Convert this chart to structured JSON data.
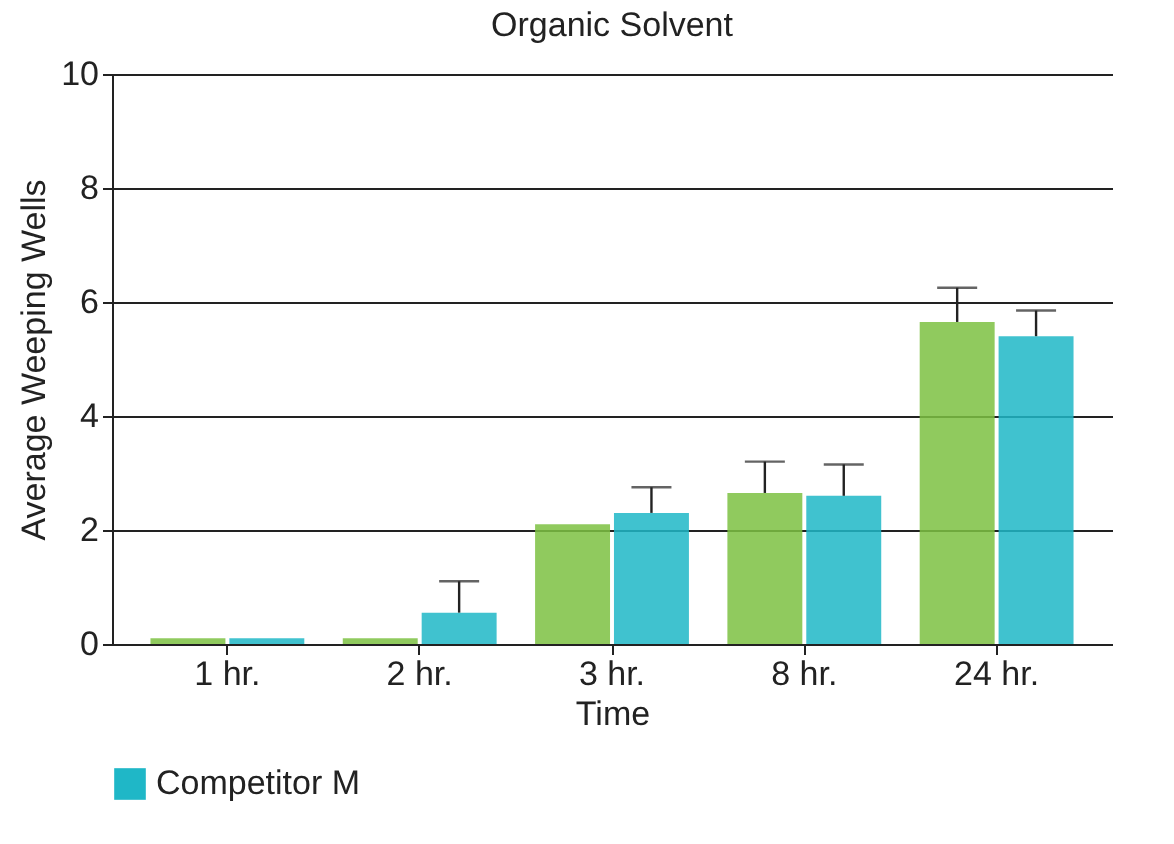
{
  "chart_data": {
    "type": "bar",
    "title": "Organic Solvent",
    "xlabel": "Time",
    "ylabel": "Average Weeping Wells",
    "categories": [
      "1 hr.",
      "2 hr.",
      "3 hr.",
      "8 hr.",
      "24 hr."
    ],
    "series": [
      {
        "color": "#7cc142",
        "values": [
          0.1,
          0.1,
          2.1,
          2.65,
          5.65
        ],
        "errors": [
          null,
          null,
          null,
          [
            2.65,
            3.2
          ],
          [
            5.65,
            6.25
          ]
        ]
      },
      {
        "name": "Competitor M",
        "color": "#1fb7c7",
        "values": [
          0.1,
          0.55,
          2.3,
          2.6,
          5.4
        ],
        "errors": [
          null,
          [
            0.55,
            1.1
          ],
          [
            2.3,
            2.75
          ],
          [
            2.6,
            3.15
          ],
          [
            5.4,
            5.85
          ]
        ]
      }
    ],
    "ylim": [
      0,
      10
    ],
    "yticks": [
      0,
      2,
      4,
      6,
      8,
      10
    ],
    "grid": "y",
    "legend": "bottom"
  }
}
